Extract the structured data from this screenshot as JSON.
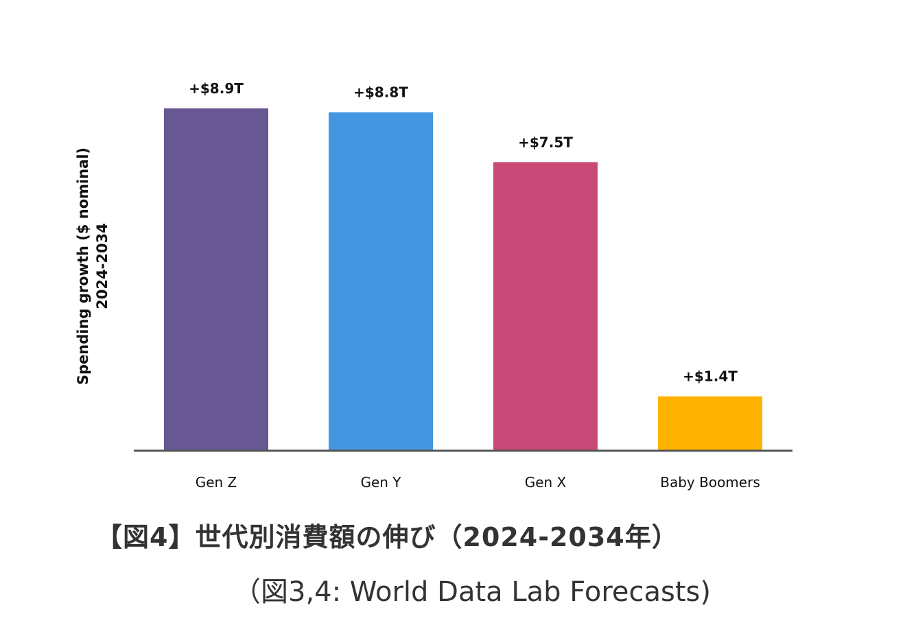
{
  "chart_data": {
    "type": "bar",
    "title": "",
    "xlabel": "",
    "ylabel_lines": [
      "Spending growth ($ nominal)",
      "2024-2034"
    ],
    "unit": "trillion USD",
    "categories": [
      "Gen Z",
      "Gen Y",
      "Gen X",
      "Baby Boomers"
    ],
    "values": [
      8.9,
      8.8,
      7.5,
      1.4
    ],
    "data_labels": [
      "+$8.9T",
      "+$8.8T",
      "+$7.5T",
      "+$1.4T"
    ],
    "colors": [
      "#675792",
      "#4596E0",
      "#C94A77",
      "#FFB300"
    ],
    "axis_color": "#555555",
    "ylim": [
      0,
      8.9
    ],
    "grid": false,
    "legend": "none"
  },
  "caption": {
    "title": "【図4】世代別消費額の伸び（2024-2034年）",
    "source": "（図3,4: World Data Lab Forecasts)"
  }
}
